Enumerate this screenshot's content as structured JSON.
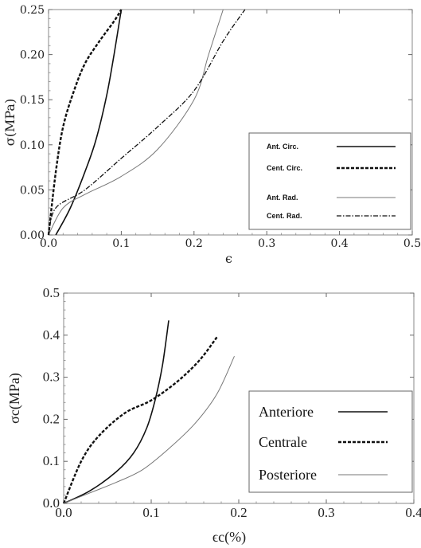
{
  "chart_data": [
    {
      "type": "line",
      "title": "",
      "xlabel": "ϵ",
      "ylabel": "σ(MPa)",
      "xlim": [
        0,
        0.5
      ],
      "ylim": [
        0,
        0.25
      ],
      "x_ticks": [
        "0.0",
        "0.1",
        "0.2",
        "0.3",
        "0.4",
        "0.5"
      ],
      "y_ticks": [
        "0.00",
        "0.05",
        "0.10",
        "0.15",
        "0.20",
        "0.25"
      ],
      "legend_position": "bottom-right",
      "series": [
        {
          "name": "Ant. Circ.",
          "style": "solid",
          "color": "#111111",
          "width": 1.6,
          "x": [
            0.01,
            0.03,
            0.05,
            0.065,
            0.08,
            0.09,
            0.1
          ],
          "y": [
            0.0,
            0.03,
            0.07,
            0.105,
            0.155,
            0.2,
            0.25
          ]
        },
        {
          "name": "Cent. Circ.",
          "style": "dashed",
          "color": "#111111",
          "width": 2.4,
          "x": [
            0.0,
            0.01,
            0.02,
            0.035,
            0.05,
            0.07,
            0.09,
            0.1
          ],
          "y": [
            0.0,
            0.07,
            0.12,
            0.16,
            0.19,
            0.215,
            0.237,
            0.25
          ]
        },
        {
          "name": "Ant. Rad.",
          "style": "solid",
          "color": "#777777",
          "width": 1.0,
          "x": [
            0.0,
            0.02,
            0.05,
            0.1,
            0.15,
            0.2,
            0.22,
            0.24
          ],
          "y": [
            0.0,
            0.03,
            0.045,
            0.065,
            0.095,
            0.15,
            0.2,
            0.25
          ]
        },
        {
          "name": "Cent. Rad.",
          "style": "dashdot",
          "color": "#111111",
          "width": 1.3,
          "x": [
            0.0,
            0.01,
            0.05,
            0.1,
            0.15,
            0.2,
            0.24,
            0.27
          ],
          "y": [
            0.0,
            0.03,
            0.05,
            0.085,
            0.12,
            0.16,
            0.215,
            0.25
          ]
        }
      ]
    },
    {
      "type": "line",
      "title": "",
      "xlabel": "ϵc(%)",
      "ylabel": "σc(MPa)",
      "xlim": [
        0,
        0.4
      ],
      "ylim": [
        0,
        0.5
      ],
      "x_ticks": [
        "0.0",
        "0.1",
        "0.2",
        "0.3",
        "0.4"
      ],
      "y_ticks": [
        "0.0",
        "0.1",
        "0.2",
        "0.3",
        "0.4",
        "0.5"
      ],
      "legend_position": "bottom-right",
      "series": [
        {
          "name": "Anteriore",
          "style": "solid",
          "color": "#111111",
          "width": 1.6,
          "x": [
            0.0,
            0.03,
            0.06,
            0.08,
            0.095,
            0.105,
            0.113,
            0.12
          ],
          "y": [
            0.0,
            0.03,
            0.075,
            0.12,
            0.18,
            0.25,
            0.33,
            0.435
          ]
        },
        {
          "name": "Centrale",
          "style": "dashed",
          "color": "#111111",
          "width": 2.4,
          "x": [
            0.0,
            0.02,
            0.04,
            0.07,
            0.1,
            0.13,
            0.155,
            0.175
          ],
          "y": [
            0.0,
            0.1,
            0.16,
            0.215,
            0.245,
            0.29,
            0.34,
            0.395
          ]
        },
        {
          "name": "Posteriore",
          "style": "solid",
          "color": "#777777",
          "width": 1.0,
          "x": [
            0.0,
            0.03,
            0.06,
            0.09,
            0.12,
            0.15,
            0.175,
            0.195
          ],
          "y": [
            0.0,
            0.025,
            0.05,
            0.08,
            0.13,
            0.19,
            0.26,
            0.35
          ]
        }
      ]
    }
  ]
}
